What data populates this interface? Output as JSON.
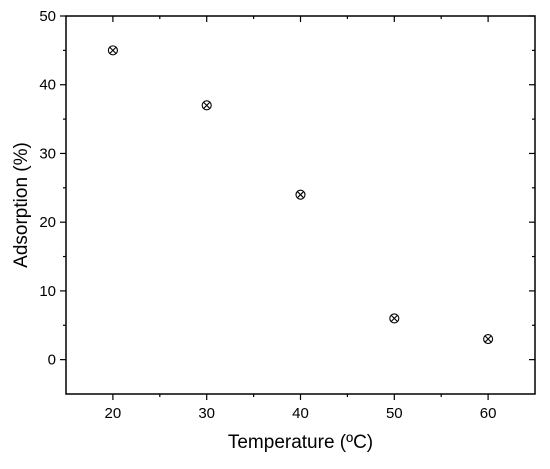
{
  "chart_data": {
    "type": "scatter",
    "xlabel": "Temperature (ºC)",
    "ylabel": "Adsorption (%)",
    "xlim": [
      15,
      65
    ],
    "ylim": [
      -5,
      50
    ],
    "xticks": [
      20,
      30,
      40,
      50,
      60
    ],
    "yticks": [
      0,
      10,
      20,
      30,
      40,
      50
    ],
    "grid": false,
    "marker": "circle-x",
    "marker_color": "#000000",
    "series": [
      {
        "x": [
          20,
          30,
          40,
          50,
          60
        ],
        "y": [
          45,
          37,
          24,
          6,
          3
        ]
      }
    ]
  }
}
